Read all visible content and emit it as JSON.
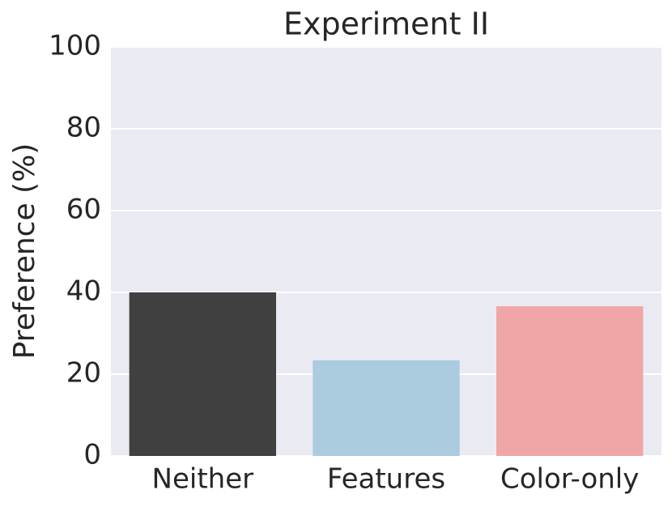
{
  "chart_data": {
    "type": "bar",
    "title": "Experiment II",
    "y_label": "Preference (%)",
    "categories": [
      "Neither",
      "Features",
      "Color-only"
    ],
    "values": [
      40.0,
      23.4,
      36.6
    ],
    "colors": [
      "#404040",
      "#abcbde",
      "#f0a6a6"
    ],
    "ylim": [
      0,
      100
    ],
    "yticks": [
      0,
      20,
      40,
      60,
      80,
      100
    ],
    "grid": true
  }
}
